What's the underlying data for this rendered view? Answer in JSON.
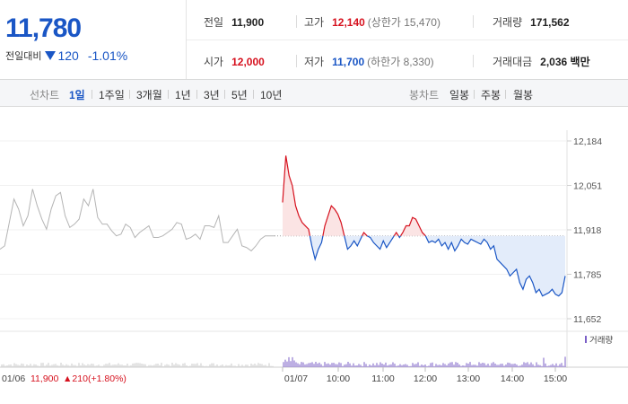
{
  "quote": {
    "price": "11,780",
    "change_label": "전일대비",
    "change_amount": "120",
    "change_percent": "-1.01%",
    "direction_icon": "triangle-down-icon"
  },
  "stats": {
    "prev_close_label": "전일",
    "prev_close": "11,900",
    "high_label": "고가",
    "high": "12,140",
    "upper_limit": "(상한가 15,470)",
    "volume_label": "거래량",
    "volume": "171,562",
    "open_label": "시가",
    "open": "12,000",
    "low_label": "저가",
    "low": "11,700",
    "lower_limit": "(하한가 8,330)",
    "trade_value_label": "거래대금",
    "trade_value": "2,036 백만"
  },
  "line_tabs": {
    "label": "선차트",
    "items": [
      "1일",
      "1주일",
      "3개월",
      "1년",
      "3년",
      "5년",
      "10년"
    ],
    "active": "1일"
  },
  "candle_tabs": {
    "label": "봉차트",
    "items": [
      "일봉",
      "주봉",
      "월봉"
    ]
  },
  "colors": {
    "up": "#d6111e",
    "down": "#1a56c5",
    "prev_day": "#b4b4b4",
    "up_fill": "#fbe4e4",
    "down_fill": "#e3ecfa"
  },
  "chart_data": {
    "type": "line",
    "y_ticks": [
      "12,184",
      "12,051",
      "11,918",
      "11,785",
      "11,652"
    ],
    "ylim": [
      11652,
      12184
    ],
    "baseline": 11900,
    "x_tick_labels": [
      "01/07",
      "10:00",
      "11:00",
      "12:00",
      "13:00",
      "14:00",
      "15:00"
    ],
    "volume_legend": "거래량",
    "prev_day_summary": {
      "date": "01/06",
      "close": "11,900",
      "change": "▲210",
      "percent": "(+1.80%)"
    },
    "series": [
      {
        "values": [
          11860,
          11870,
          11940,
          12010,
          11980,
          11930,
          11960,
          12040,
          11990,
          11950,
          11920,
          11980,
          12020,
          12030,
          11960,
          11925,
          11935,
          11950,
          12010,
          11990,
          12040,
          11955,
          11935,
          11935,
          11915,
          11900,
          11905,
          11935,
          11925,
          11895,
          11910,
          11920,
          11930,
          11895,
          11895,
          11900,
          11910,
          11920,
          11940,
          11935,
          11890,
          11895,
          11905,
          11890,
          11930,
          11930,
          11925,
          11960,
          11880,
          11880,
          11900,
          11920,
          11870,
          11865,
          11855,
          11870,
          11890,
          11900,
          11900,
          11900
        ]
      },
      {
        "values": [
          12000,
          12140,
          12080,
          12050,
          11990,
          11960,
          11940,
          11930,
          11920,
          11870,
          11830,
          11860,
          11880,
          11930,
          11960,
          11990,
          11980,
          11965,
          11940,
          11900,
          11860,
          11870,
          11885,
          11870,
          11890,
          11910,
          11900,
          11895,
          11880,
          11870,
          11860,
          11885,
          11865,
          11880,
          11895,
          11910,
          11895,
          11910,
          11930,
          11930,
          11955,
          11950,
          11930,
          11910,
          11900,
          11880,
          11885,
          11880,
          11890,
          11870,
          11880,
          11860,
          11880,
          11855,
          11870,
          11890,
          11880,
          11875,
          11890,
          11885,
          11880,
          11875,
          11890,
          11880,
          11860,
          11870,
          11830,
          11820,
          11810,
          11800,
          11780,
          11790,
          11800,
          11760,
          11740,
          11770,
          11780,
          11760,
          11730,
          11740,
          11720,
          11725,
          11730,
          11740,
          11725,
          11720,
          11730,
          11780
        ]
      }
    ]
  }
}
